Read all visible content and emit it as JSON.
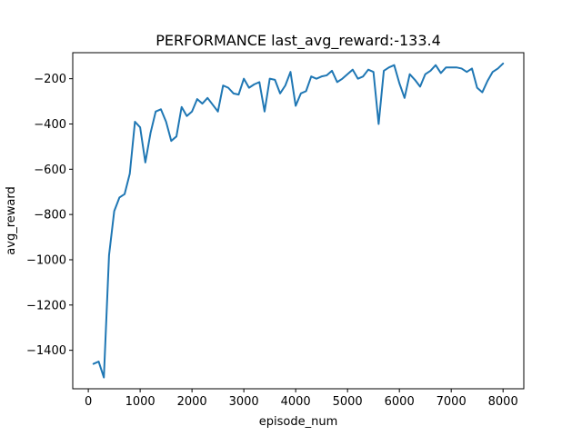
{
  "chart_data": {
    "type": "line",
    "title": "PERFORMANCE last_avg_reward:-133.4",
    "xlabel": "episode_num",
    "ylabel": "avg_reward",
    "xlim": [
      -300,
      8400
    ],
    "ylim": [
      -1570,
      -85
    ],
    "xticks": [
      0,
      1000,
      2000,
      3000,
      4000,
      5000,
      6000,
      7000,
      8000
    ],
    "xtick_labels": [
      "0",
      "1000",
      "2000",
      "3000",
      "4000",
      "5000",
      "6000",
      "7000",
      "8000"
    ],
    "yticks": [
      -1400,
      -1200,
      -1000,
      -800,
      -600,
      -400,
      -200
    ],
    "ytick_labels": [
      "−1400",
      "−1200",
      "−1000",
      "−800",
      "−600",
      "−400",
      "−200"
    ],
    "grid": false,
    "color": "#1f77b4",
    "series": [
      {
        "x": [
          100,
          200,
          300,
          400,
          500,
          600,
          700,
          800,
          900,
          1000,
          1100,
          1200,
          1300,
          1400,
          1500,
          1600,
          1700,
          1800,
          1900,
          2000,
          2100,
          2200,
          2300,
          2400,
          2500,
          2600,
          2700,
          2800,
          2900,
          3000,
          3100,
          3200,
          3300,
          3400,
          3500,
          3600,
          3700,
          3800,
          3900,
          4000,
          4100,
          4200,
          4300,
          4400,
          4500,
          4600,
          4700,
          4800,
          4900,
          5000,
          5100,
          5200,
          5300,
          5400,
          5500,
          5600,
          5700,
          5800,
          5900,
          6000,
          6100,
          6200,
          6300,
          6400,
          6500,
          6600,
          6700,
          6800,
          6900,
          7000,
          7100,
          7200,
          7300,
          7400,
          7500,
          7600,
          7700,
          7800,
          7900,
          8000
        ],
        "y": [
          -1460,
          -1450,
          -1520,
          -980,
          -785,
          -725,
          -710,
          -620,
          -390,
          -415,
          -570,
          -440,
          -345,
          -335,
          -390,
          -475,
          -455,
          -325,
          -365,
          -345,
          -290,
          -310,
          -285,
          -315,
          -345,
          -230,
          -240,
          -265,
          -270,
          -200,
          -240,
          -225,
          -215,
          -345,
          -200,
          -205,
          -265,
          -230,
          -170,
          -320,
          -265,
          -255,
          -190,
          -200,
          -190,
          -185,
          -165,
          -215,
          -200,
          -180,
          -160,
          -200,
          -190,
          -160,
          -170,
          -400,
          -165,
          -150,
          -140,
          -220,
          -285,
          -180,
          -205,
          -235,
          -180,
          -165,
          -140,
          -175,
          -150,
          -150,
          -150,
          -155,
          -170,
          -155,
          -240,
          -260,
          -210,
          -170,
          -155,
          -133
        ]
      }
    ]
  }
}
